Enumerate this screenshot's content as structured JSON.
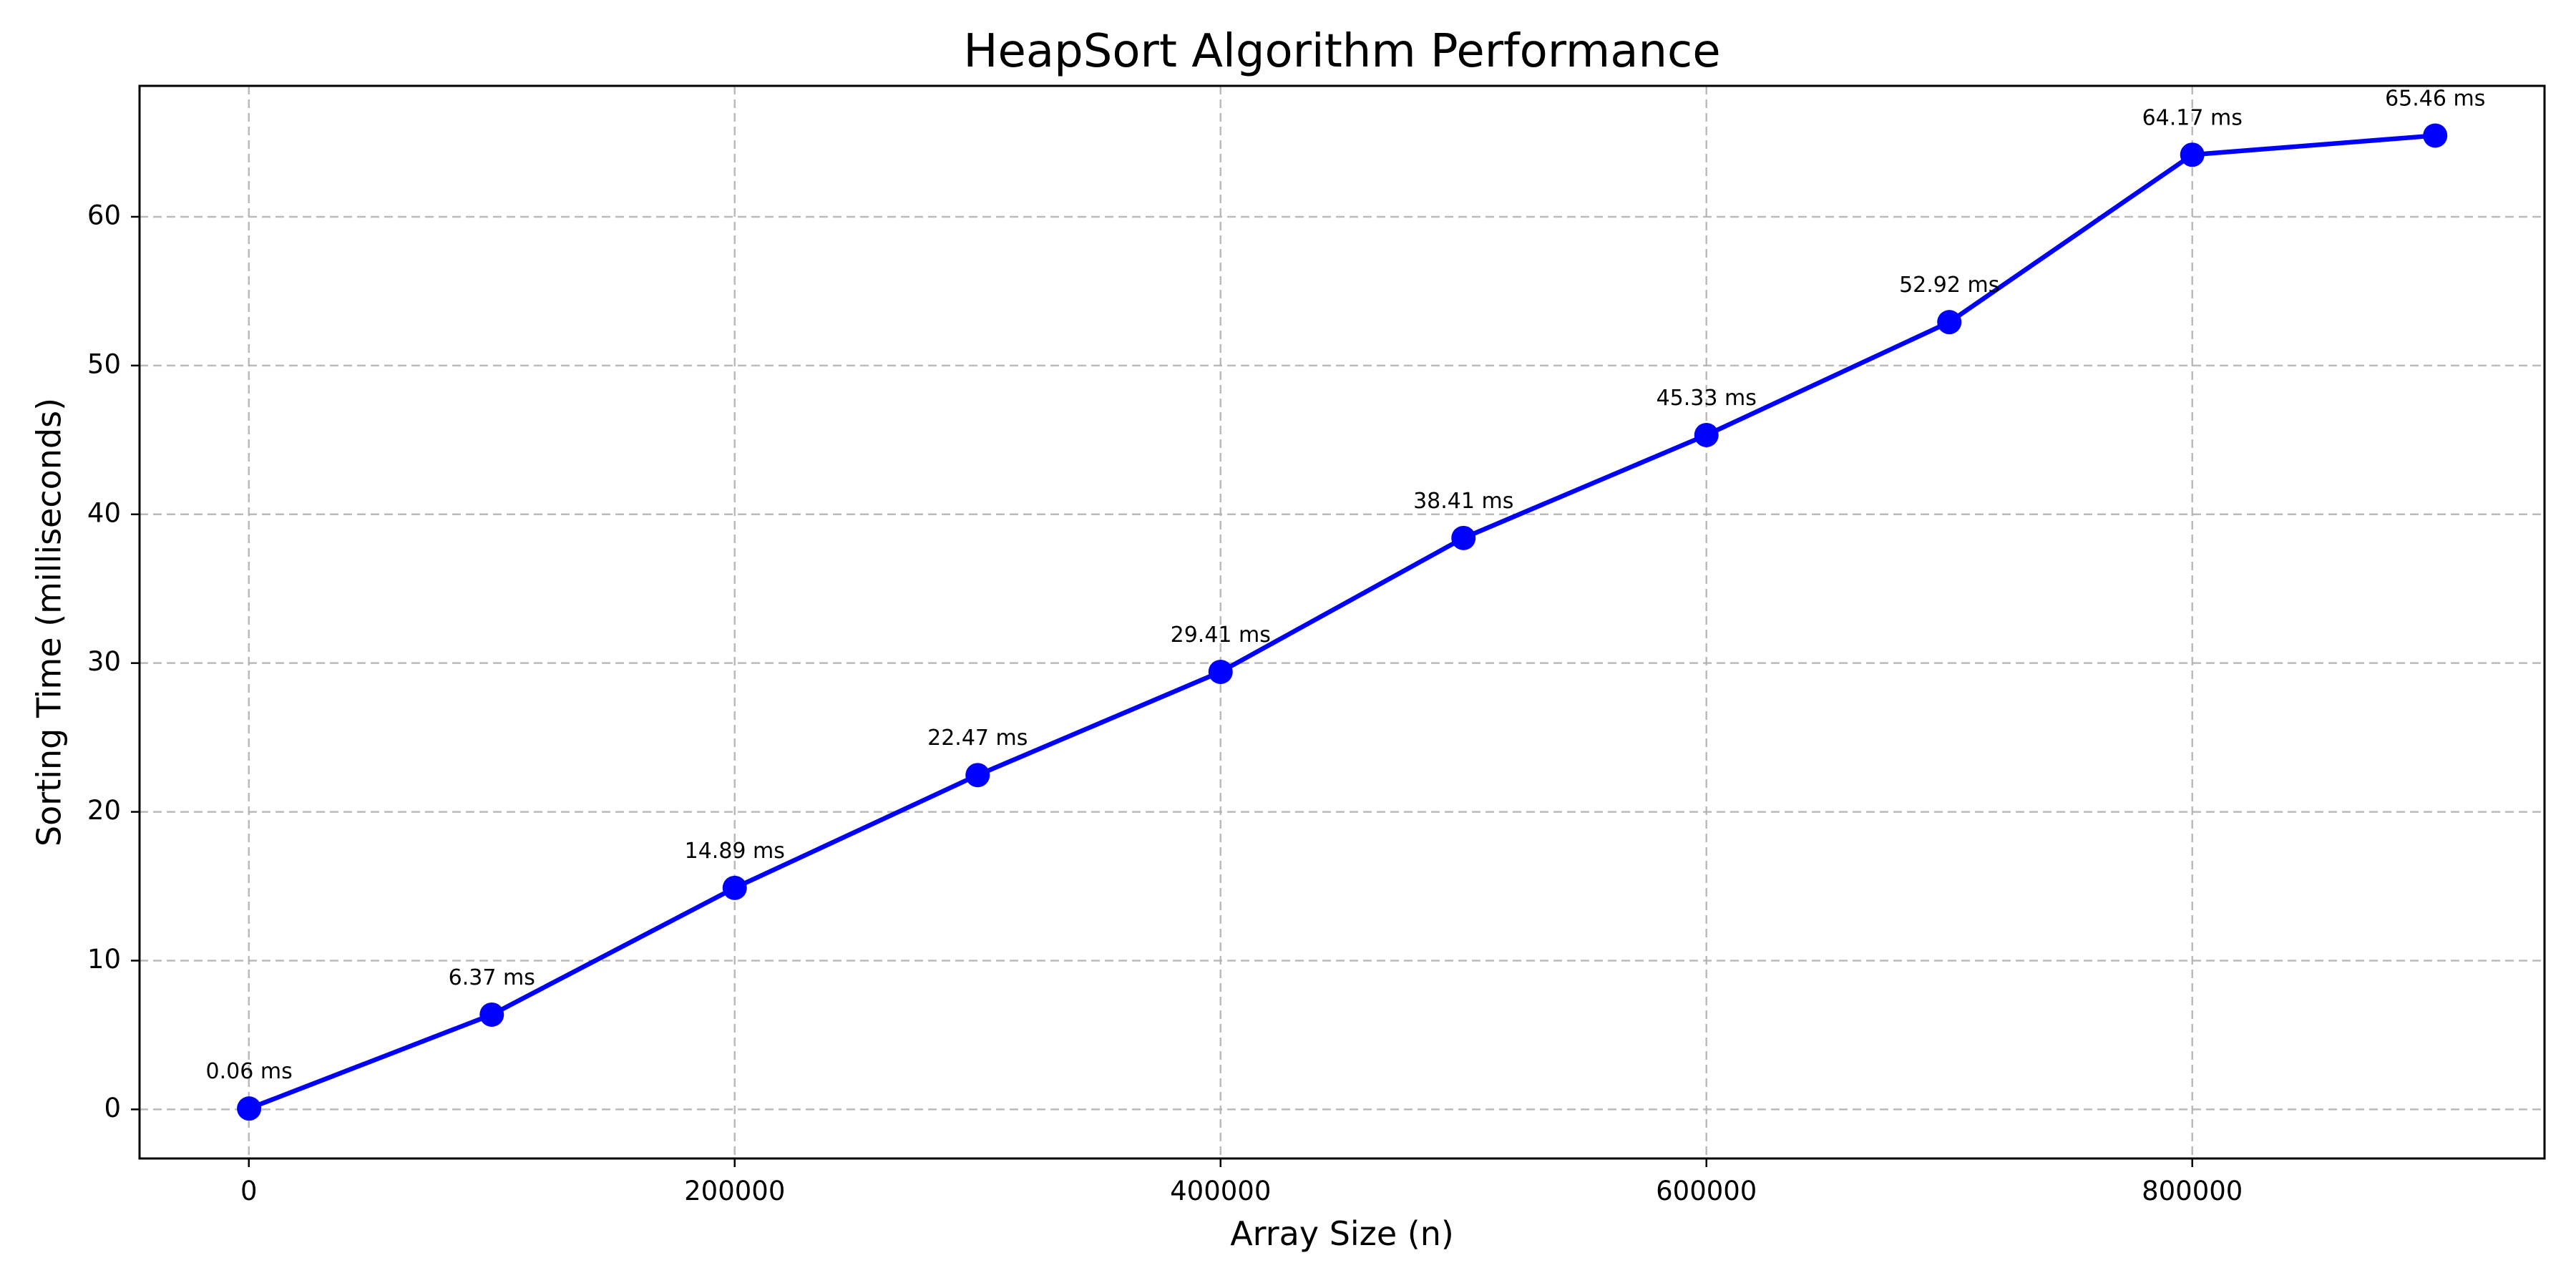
{
  "chart_data": {
    "type": "line",
    "title": "HeapSort Algorithm Performance",
    "xlabel": "Array Size (n)",
    "ylabel": "Sorting Time (milliseconds)",
    "xlim": [
      -45000,
      945000
    ],
    "ylim": [
      -3.3,
      68.8
    ],
    "xticks": [
      0,
      200000,
      400000,
      600000,
      800000
    ],
    "yticks": [
      0,
      10,
      20,
      30,
      40,
      50,
      60
    ],
    "grid": true,
    "series": [
      {
        "color": "#0000ff",
        "x": [
          100,
          100000,
          200000,
          300000,
          400000,
          500000,
          600000,
          700000,
          800000,
          900000
        ],
        "y": [
          0.06,
          6.37,
          14.89,
          22.47,
          29.41,
          38.41,
          45.33,
          52.92,
          64.17,
          65.46
        ],
        "labels": [
          "0.06 ms",
          "6.37 ms",
          "14.89 ms",
          "22.47 ms",
          "29.41 ms",
          "38.41 ms",
          "45.33 ms",
          "52.92 ms",
          "64.17 ms",
          "65.46 ms"
        ]
      }
    ]
  }
}
